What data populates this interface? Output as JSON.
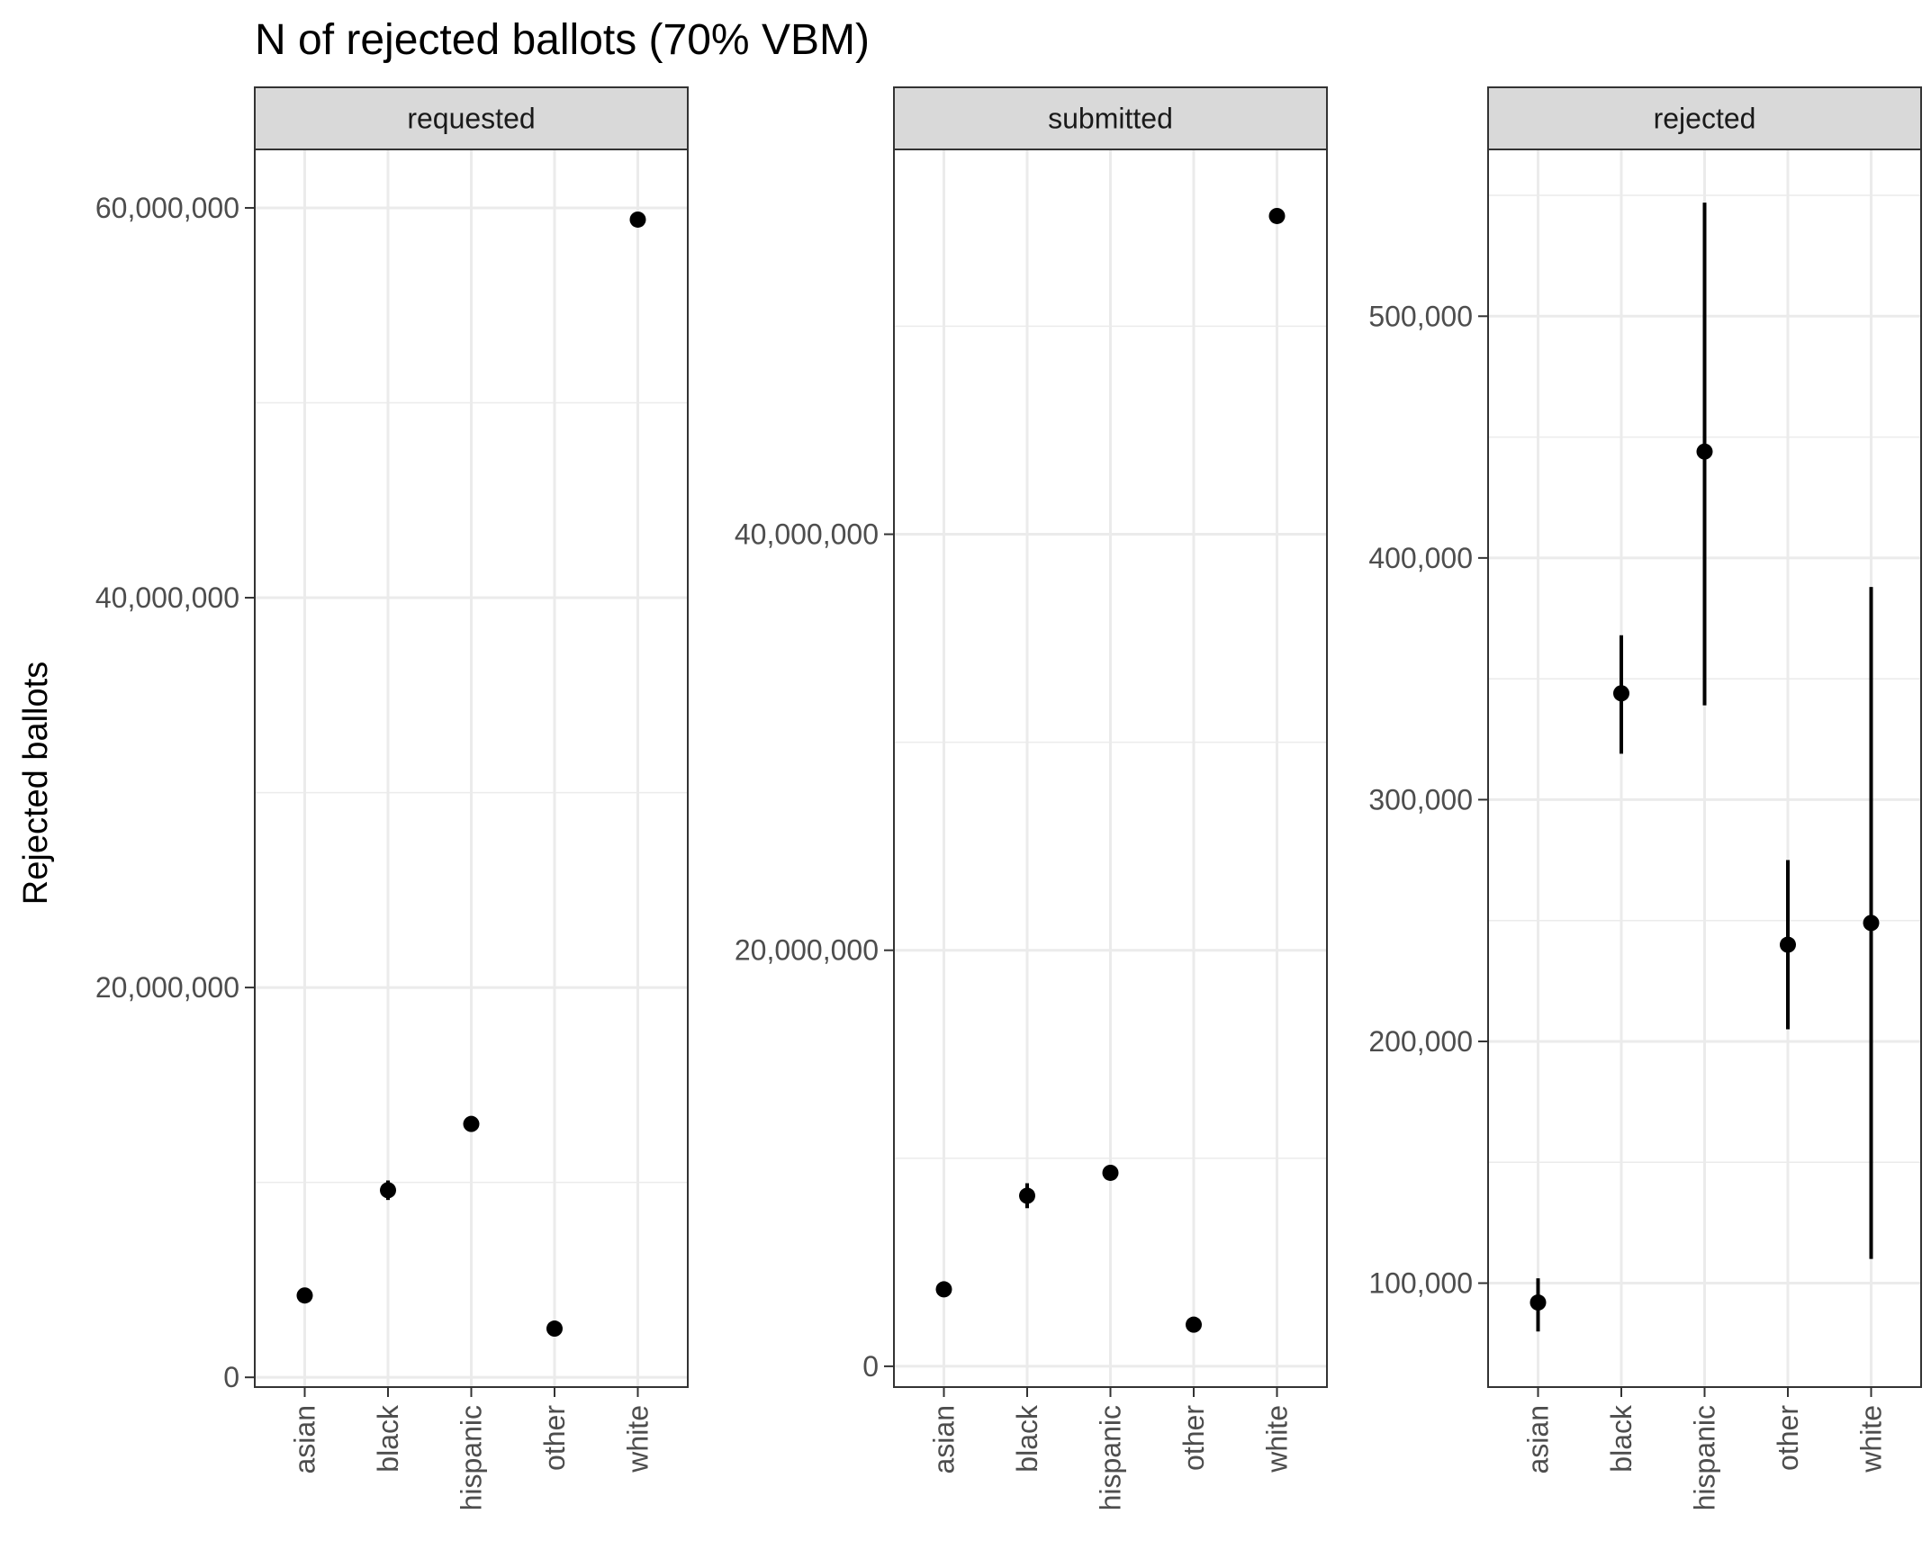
{
  "chart_data": {
    "type": "scatter",
    "title": "N of rejected ballots (70% VBM)",
    "ylabel": "Rejected ballots",
    "xlabel": "",
    "categories": [
      "asian",
      "black",
      "hispanic",
      "other",
      "white"
    ],
    "grid": true,
    "legend": "none",
    "panels": [
      {
        "strip": "requested",
        "ylim": [
          -500000,
          63000000
        ],
        "yticks": [
          0,
          20000000,
          40000000,
          60000000
        ],
        "ytick_labels": [
          "0",
          "20,000,000",
          "40,000,000",
          "60,000,000"
        ],
        "values": [
          4200000,
          9600000,
          13000000,
          2500000,
          59400000
        ],
        "lower": [
          4100000,
          9100000,
          12900000,
          2450000,
          59200000
        ],
        "upper": [
          4300000,
          10100000,
          13100000,
          2550000,
          59600000
        ]
      },
      {
        "strip": "submitted",
        "ylim": [
          -1000000,
          58500000
        ],
        "yticks": [
          0,
          20000000,
          40000000
        ],
        "ytick_labels": [
          "0",
          "20,000,000",
          "40,000,000"
        ],
        "values": [
          3700000,
          8200000,
          9300000,
          2000000,
          55300000
        ],
        "lower": [
          3600000,
          7600000,
          9200000,
          1950000,
          55000000
        ],
        "upper": [
          3800000,
          8800000,
          9400000,
          2050000,
          55600000
        ]
      },
      {
        "strip": "rejected",
        "ylim": [
          57000,
          569000
        ],
        "yticks": [
          100000,
          200000,
          300000,
          400000,
          500000
        ],
        "ytick_labels": [
          "100,000",
          "200,000",
          "300,000",
          "400,000",
          "500,000"
        ],
        "values": [
          92000,
          344000,
          444000,
          240000,
          249000
        ],
        "lower": [
          80000,
          319000,
          339000,
          205000,
          110000
        ],
        "upper": [
          102000,
          368000,
          547000,
          275000,
          388000
        ]
      }
    ]
  },
  "colors": {
    "background": "#ffffff",
    "panel_border": "#333333",
    "grid": "#ebebeb",
    "strip_fill": "#d9d9d9",
    "point": "#000000",
    "tick_text": "#4d4d4d"
  }
}
